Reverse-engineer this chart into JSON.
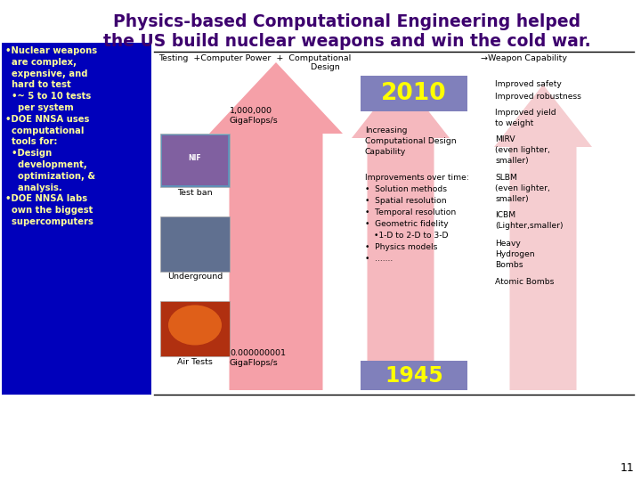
{
  "title_line1": "Physics-based Computational Engineering helped",
  "title_line2": "the US build nuclear weapons and win the cold war.",
  "title_color": "#3d006e",
  "title_fontsize": 13.5,
  "bg_color": "#ffffff",
  "left_panel_bg": "#0000bb",
  "left_panel_text_color": "#ffff99",
  "arrow_color_main": "#f5a0a8",
  "arrow_color_mid": "#f5b8be",
  "arrow_color_right": "#f5cdd0",
  "year_box_bg": "#8080bb",
  "year_2010": "2010",
  "year_1945": "1945",
  "year_color": "#ffff00",
  "slide_number": "11"
}
